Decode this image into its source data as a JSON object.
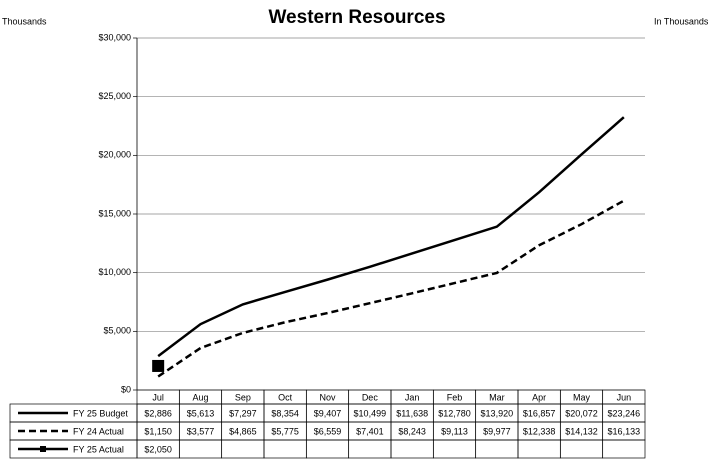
{
  "chart_data": {
    "type": "line",
    "title": "Western Resources",
    "left_note": "Thousands",
    "right_note": "In Thousands",
    "categories": [
      "Jul",
      "Aug",
      "Sep",
      "Oct",
      "Nov",
      "Dec",
      "Jan",
      "Feb",
      "Mar",
      "Apr",
      "May",
      "Jun"
    ],
    "ylim": [
      0,
      30000
    ],
    "yticks": [
      {
        "value": 0,
        "label": "$0"
      },
      {
        "value": 5000,
        "label": "$5,000"
      },
      {
        "value": 10000,
        "label": "$10,000"
      },
      {
        "value": 15000,
        "label": "$15,000"
      },
      {
        "value": 20000,
        "label": "$20,000"
      },
      {
        "value": 25000,
        "label": "$25,000"
      },
      {
        "value": 30000,
        "label": "$30,000"
      }
    ],
    "grid": true,
    "series": [
      {
        "name": "FY 25 Budget",
        "color": "#000000",
        "style": "solid",
        "values": [
          2886,
          5613,
          7297,
          8354,
          9407,
          10499,
          11638,
          12780,
          13920,
          16857,
          20072,
          23246
        ],
        "value_labels": [
          "$2,886",
          "$5,613",
          "$7,297",
          "$8,354",
          "$9,407",
          "$10,499",
          "$11,638",
          "$12,780",
          "$13,920",
          "$16,857",
          "$20,072",
          "$23,246"
        ]
      },
      {
        "name": "FY 24 Actual",
        "color": "#000000",
        "style": "dashed",
        "values": [
          1150,
          3577,
          4865,
          5775,
          6559,
          7401,
          8243,
          9113,
          9977,
          12338,
          14132,
          16133
        ],
        "value_labels": [
          "$1,150",
          "$3,577",
          "$4,865",
          "$5,775",
          "$6,559",
          "$7,401",
          "$8,243",
          "$9,113",
          "$9,977",
          "$12,338",
          "$14,132",
          "$16,133"
        ]
      },
      {
        "name": "FY 25 Actual",
        "color": "#000000",
        "style": "solid",
        "marker": "square",
        "values": [
          2050,
          null,
          null,
          null,
          null,
          null,
          null,
          null,
          null,
          null,
          null,
          null
        ],
        "value_labels": [
          "$2,050",
          null,
          null,
          null,
          null,
          null,
          null,
          null,
          null,
          null,
          null,
          null
        ]
      }
    ]
  }
}
